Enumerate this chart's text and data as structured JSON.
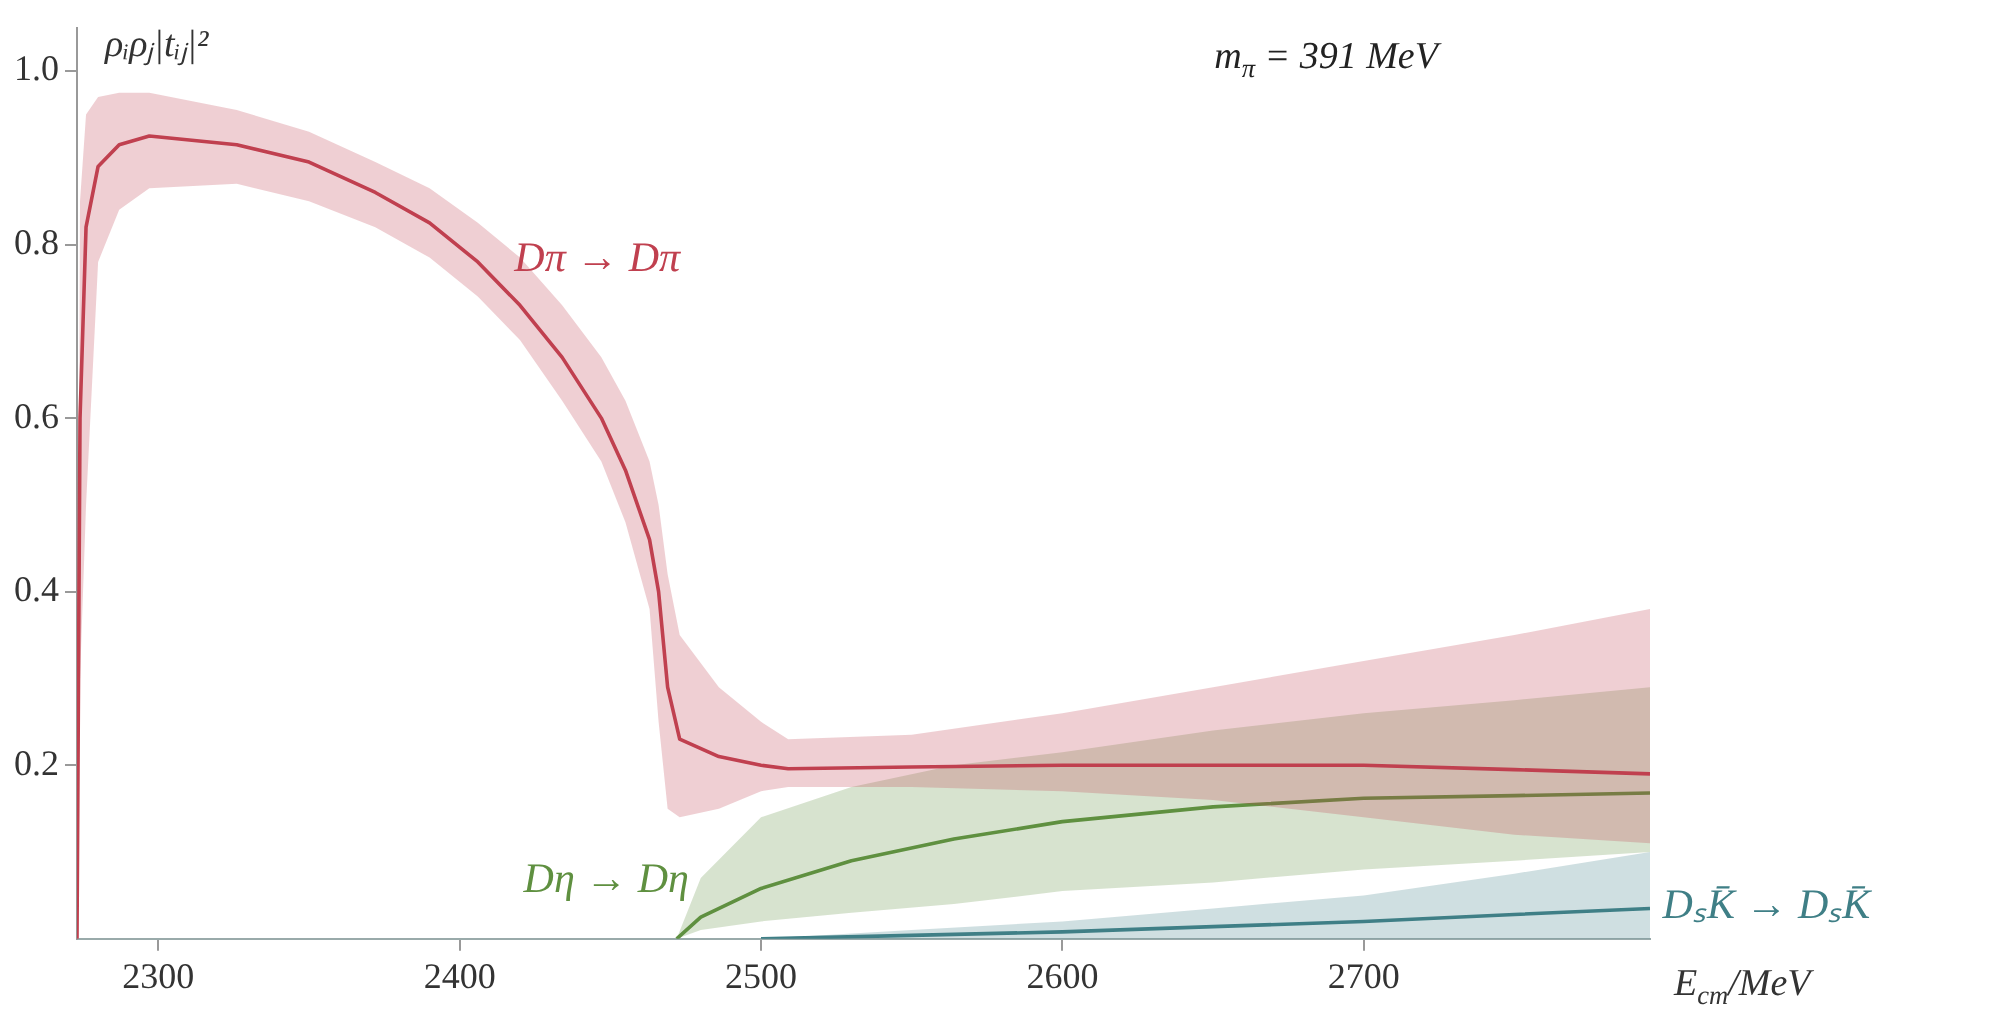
{
  "chart_data": {
    "type": "line",
    "ylabel": "ρᵢρⱼ|tᵢⱼ|²",
    "xlabel": "E$_{cm}$/MeV",
    "annotations": [
      "m$_{π}$ = 391 MeV"
    ],
    "xlim": [
      2273,
      2795
    ],
    "xticks": [
      2300,
      2400,
      2500,
      2600,
      2700
    ],
    "ylim": [
      0,
      1.05
    ],
    "yticks": [
      0.2,
      0.4,
      0.6,
      0.8,
      {
        "value": 1.0,
        "label": "1.0"
      }
    ],
    "grid": false,
    "legend": false,
    "marker": "none",
    "line_style": "solid",
    "series": [
      {
        "name": "Dπ → Dπ",
        "color": "#c0404f",
        "x": [
          2273,
          2274,
          2276,
          2280,
          2287,
          2297,
          2326,
          2350,
          2372,
          2390,
          2406,
          2420,
          2434,
          2447,
          2455,
          2463,
          2466,
          2469,
          2473,
          2486,
          2500,
          2509,
          2550,
          2600,
          2650,
          2700,
          2750,
          2795
        ],
        "values": [
          0,
          0.6,
          0.82,
          0.89,
          0.915,
          0.925,
          0.915,
          0.895,
          0.86,
          0.825,
          0.78,
          0.73,
          0.67,
          0.6,
          0.54,
          0.46,
          0.4,
          0.29,
          0.23,
          0.21,
          0.2,
          0.196,
          0.198,
          0.2,
          0.2,
          0.2,
          0.195,
          0.19
        ],
        "upper": [
          0,
          0.85,
          0.95,
          0.97,
          0.975,
          0.975,
          0.955,
          0.93,
          0.895,
          0.865,
          0.825,
          0.785,
          0.73,
          0.67,
          0.62,
          0.55,
          0.5,
          0.42,
          0.35,
          0.29,
          0.25,
          0.23,
          0.235,
          0.26,
          0.29,
          0.32,
          0.35,
          0.38
        ],
        "lower": [
          0,
          0.3,
          0.5,
          0.78,
          0.84,
          0.865,
          0.87,
          0.85,
          0.82,
          0.785,
          0.74,
          0.69,
          0.62,
          0.55,
          0.48,
          0.38,
          0.25,
          0.15,
          0.14,
          0.15,
          0.17,
          0.175,
          0.175,
          0.17,
          0.16,
          0.14,
          0.12,
          0.11
        ]
      },
      {
        "name": "Dη → Dη",
        "color": "#5f9040",
        "x": [
          2472,
          2480,
          2500,
          2530,
          2564,
          2600,
          2650,
          2700,
          2750,
          2795
        ],
        "values": [
          0,
          0.025,
          0.058,
          0.09,
          0.115,
          0.135,
          0.152,
          0.162,
          0.165,
          0.168
        ],
        "upper": [
          0,
          0.07,
          0.14,
          0.175,
          0.2,
          0.215,
          0.24,
          0.26,
          0.275,
          0.29
        ],
        "lower": [
          0,
          0.01,
          0.02,
          0.03,
          0.04,
          0.055,
          0.065,
          0.08,
          0.09,
          0.1
        ]
      },
      {
        "name": "DₛK̄ → DₛK̄",
        "color": "#3f7f86",
        "x": [
          2500,
          2550,
          2600,
          2650,
          2700,
          2750,
          2795
        ],
        "values": [
          0,
          0.004,
          0.008,
          0.014,
          0.02,
          0.028,
          0.035
        ],
        "upper": [
          0,
          0.01,
          0.02,
          0.035,
          0.05,
          0.075,
          0.1
        ],
        "lower": [
          0,
          0,
          0,
          0,
          0,
          0,
          0
        ]
      }
    ]
  }
}
